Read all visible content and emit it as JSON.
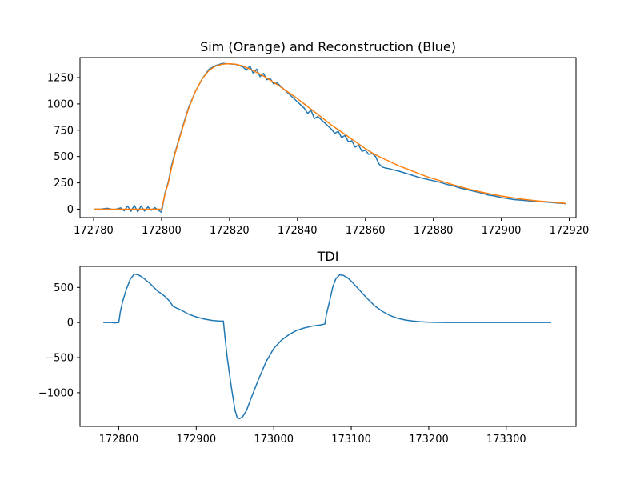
{
  "chart_data": [
    {
      "type": "line",
      "title": "Sim (Orange) and Reconstruction (Blue)",
      "xlabel": "",
      "ylabel": "",
      "xlim": [
        172776,
        172922
      ],
      "ylim": [
        -80,
        1440
      ],
      "xticks": [
        172780,
        172800,
        172820,
        172840,
        172860,
        172880,
        172900,
        172920
      ],
      "yticks": [
        0,
        250,
        500,
        750,
        1000,
        1250
      ],
      "grid": false,
      "series": [
        {
          "color": "#1f77b4",
          "x": [
            172780,
            172782,
            172784,
            172786,
            172788,
            172789,
            172790,
            172791,
            172792,
            172793,
            172794,
            172795,
            172796,
            172797,
            172798,
            172799,
            172800,
            172801,
            172802,
            172803,
            172804,
            172806,
            172808,
            172810,
            172812,
            172814,
            172816,
            172818,
            172820,
            172822,
            172824,
            172825,
            172826,
            172827,
            172828,
            172829,
            172830,
            172831,
            172832,
            172833,
            172834,
            172836,
            172838,
            172840,
            172842,
            172843,
            172844,
            172845,
            172846,
            172848,
            172850,
            172851,
            172852,
            172853,
            172854,
            172855,
            172856,
            172857,
            172858,
            172859,
            172860,
            172861,
            172862,
            172863,
            172864,
            172865,
            172866,
            172867,
            172868,
            172870,
            172872,
            172874,
            172876,
            172878,
            172880,
            172882,
            172884,
            172886,
            172888,
            172890,
            172892,
            172894,
            172896,
            172898,
            172900,
            172902,
            172904,
            172906,
            172908,
            172910,
            172912,
            172914,
            172916,
            172918,
            172919
          ],
          "y": [
            0,
            0,
            8,
            -6,
            12,
            -15,
            30,
            -20,
            35,
            -25,
            30,
            -18,
            22,
            -10,
            15,
            -8,
            -30,
            150,
            260,
            420,
            540,
            760,
            970,
            1120,
            1240,
            1330,
            1365,
            1385,
            1380,
            1375,
            1350,
            1320,
            1360,
            1290,
            1330,
            1260,
            1290,
            1230,
            1240,
            1190,
            1200,
            1140,
            1080,
            1020,
            960,
            910,
            940,
            860,
            880,
            820,
            760,
            720,
            740,
            680,
            700,
            640,
            650,
            590,
            610,
            550,
            560,
            520,
            530,
            500,
            430,
            400,
            390,
            385,
            375,
            360,
            340,
            320,
            300,
            285,
            270,
            255,
            235,
            220,
            200,
            185,
            170,
            155,
            135,
            125,
            110,
            100,
            90,
            85,
            80,
            75,
            70,
            65,
            60,
            55,
            52
          ]
        },
        {
          "color": "#ff7f0e",
          "x": [
            172780,
            172782,
            172784,
            172786,
            172788,
            172790,
            172792,
            172794,
            172796,
            172798,
            172800,
            172801,
            172802,
            172803,
            172804,
            172806,
            172808,
            172810,
            172812,
            172814,
            172816,
            172818,
            172820,
            172822,
            172824,
            172826,
            172828,
            172830,
            172832,
            172834,
            172836,
            172838,
            172840,
            172842,
            172844,
            172846,
            172848,
            172850,
            172852,
            172854,
            172856,
            172858,
            172860,
            172862,
            172864,
            172866,
            172868,
            172870,
            172872,
            172874,
            172876,
            172878,
            172880,
            172882,
            172884,
            172886,
            172888,
            172890,
            172892,
            172894,
            172896,
            172898,
            172900,
            172902,
            172904,
            172906,
            172908,
            172910,
            172912,
            172914,
            172916,
            172918,
            172919
          ],
          "y": [
            0,
            0,
            0,
            0,
            0,
            0,
            0,
            0,
            0,
            0,
            0,
            140,
            250,
            400,
            530,
            750,
            960,
            1120,
            1240,
            1320,
            1360,
            1378,
            1382,
            1376,
            1360,
            1330,
            1300,
            1265,
            1225,
            1185,
            1140,
            1095,
            1050,
            1000,
            950,
            900,
            850,
            800,
            755,
            710,
            665,
            620,
            575,
            535,
            500,
            470,
            440,
            410,
            385,
            360,
            335,
            310,
            290,
            270,
            250,
            230,
            212,
            195,
            178,
            163,
            150,
            137,
            125,
            115,
            105,
            96,
            88,
            81,
            75,
            69,
            63,
            58,
            55
          ]
        }
      ]
    },
    {
      "type": "line",
      "title": "TDI",
      "xlabel": "",
      "ylabel": "",
      "xlim": [
        172750,
        173390
      ],
      "ylim": [
        -1480,
        800
      ],
      "xticks": [
        172800,
        172900,
        173000,
        173100,
        173200,
        173300
      ],
      "yticks": [
        -1000,
        -500,
        0,
        500
      ],
      "grid": false,
      "series": [
        {
          "color": "#1f77b4",
          "x": [
            172780,
            172790,
            172795,
            172800,
            172802,
            172805,
            172810,
            172815,
            172820,
            172825,
            172830,
            172840,
            172850,
            172860,
            172866,
            172870,
            172880,
            172890,
            172900,
            172910,
            172920,
            172930,
            172935,
            172937,
            172940,
            172945,
            172950,
            172953,
            172956,
            172960,
            172965,
            172970,
            172980,
            172990,
            173000,
            173010,
            173020,
            173030,
            173040,
            173050,
            173060,
            173066,
            173068,
            173072,
            173076,
            173080,
            173085,
            173090,
            173095,
            173100,
            173110,
            173120,
            173130,
            173140,
            173150,
            173160,
            173170,
            173180,
            173190,
            173200,
            173220,
            173240,
            173260,
            173280,
            173300,
            173320,
            173340,
            173358
          ],
          "y": [
            0,
            0,
            -5,
            0,
            150,
            300,
            480,
            620,
            690,
            680,
            650,
            560,
            450,
            370,
            300,
            230,
            180,
            120,
            80,
            50,
            30,
            20,
            20,
            -200,
            -500,
            -900,
            -1250,
            -1360,
            -1370,
            -1340,
            -1250,
            -1100,
            -820,
            -560,
            -370,
            -250,
            -170,
            -110,
            -75,
            -50,
            -35,
            -20,
            120,
            300,
            500,
            620,
            680,
            670,
            640,
            590,
            470,
            350,
            240,
            160,
            100,
            60,
            35,
            20,
            10,
            5,
            0,
            0,
            0,
            0,
            0,
            0,
            0,
            0
          ]
        }
      ]
    }
  ]
}
